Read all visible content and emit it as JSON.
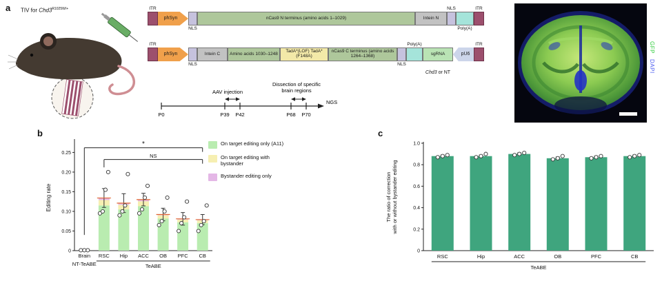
{
  "panels": {
    "a": "a",
    "b": "b",
    "c": "c"
  },
  "panel_a": {
    "tiv_label_prefix": "TIV for ",
    "tiv_gene": "Chd3",
    "tiv_allele": "R1025W/+",
    "construct1": [
      {
        "type": "itr",
        "label": "ITR",
        "pos": "top"
      },
      {
        "type": "promoter",
        "label": "phSyn",
        "pos": "in"
      },
      {
        "type": "nls",
        "label": "NLS",
        "pos": "bottom"
      },
      {
        "type": "coding",
        "label": "nCas9 N terminus (amino acids 1–1029)",
        "pos": "in"
      },
      {
        "type": "intein",
        "label": "Intein N",
        "pos": "in"
      },
      {
        "type": "nls",
        "label": "NLS",
        "pos": "top"
      },
      {
        "type": "polya",
        "label": "Poly(A)",
        "pos": "bottom"
      },
      {
        "type": "itr",
        "label": "ITR",
        "pos": "top"
      }
    ],
    "construct2": [
      {
        "type": "itr",
        "label": "ITR",
        "pos": "top"
      },
      {
        "type": "promoter",
        "label": "phSyn",
        "pos": "in"
      },
      {
        "type": "nls",
        "label": "NLS",
        "pos": "bottom"
      },
      {
        "type": "intein",
        "label": "Intein C",
        "pos": "in"
      },
      {
        "type": "coding",
        "label": "Amino acids 1030–1248",
        "pos": "in"
      },
      {
        "type": "tada",
        "label": "TadA*(LOF) TadA*(F148A)",
        "pos": "in"
      },
      {
        "type": "coding",
        "label": "nCas9 C terminus (amino acids 1264–1368)",
        "pos": "in"
      },
      {
        "type": "nls",
        "label": "NLS",
        "pos": "bottom"
      },
      {
        "type": "polya",
        "label": "Poly(A)",
        "pos": "top"
      },
      {
        "type": "sgrna",
        "label": "sgRNA",
        "pos": "in"
      },
      {
        "type": "pu6",
        "label": "pU6",
        "pos": "in"
      },
      {
        "type": "itr",
        "label": "ITR",
        "pos": "top"
      }
    ],
    "target_gene": "Chd3",
    "target_suffix": " or NT",
    "timeline": {
      "p0": "P0",
      "p39": "P39",
      "p42": "P42",
      "p68": "P68",
      "p70": "P70",
      "ngs": "NGS",
      "injection": "AAV injection",
      "dissection_line1": "Dissection of specific",
      "dissection_line2": "brain regions"
    },
    "micrograph": {
      "gfp": "GFP",
      "dapi": "DAPI"
    }
  },
  "chart_data": [
    {
      "type": "bar",
      "panel": "b",
      "ylabel": "Editing rate",
      "ylim": [
        0,
        0.27
      ],
      "yticks": [
        0,
        0.05,
        0.1,
        0.15,
        0.2,
        0.25
      ],
      "categories": [
        "Brain",
        "RSC",
        "Hip",
        "ACC",
        "OB",
        "PFC",
        "CB"
      ],
      "group_labels": {
        "left": "NT-TeABE",
        "right": "TeABE"
      },
      "series": [
        {
          "name": "On target editing only (A11)",
          "color": "#b9ecb0",
          "values": [
            0.001,
            0.115,
            0.105,
            0.113,
            0.082,
            0.072,
            0.07
          ]
        },
        {
          "name": "On target editing with bystander",
          "color": "#f6efb2",
          "values": [
            0,
            0.014,
            0.012,
            0.013,
            0.008,
            0.007,
            0.007
          ]
        },
        {
          "name": "Bystander editing only",
          "color": "#e4b7e6",
          "values": [
            0,
            0.005,
            0.004,
            0.004,
            0.002,
            0.002,
            0.002
          ]
        }
      ],
      "errors": [
        0,
        0.024,
        0.024,
        0.016,
        0.016,
        0.016,
        0.013
      ],
      "points": [
        [
          0.001,
          0.001,
          0.001
        ],
        [
          0.095,
          0.1,
          0.155,
          0.2
        ],
        [
          0.09,
          0.1,
          0.115,
          0.195
        ],
        [
          0.095,
          0.105,
          0.135,
          0.165
        ],
        [
          0.065,
          0.075,
          0.1,
          0.135
        ],
        [
          0.05,
          0.07,
          0.085,
          0.125
        ],
        [
          0.05,
          0.065,
          0.075,
          0.115
        ]
      ],
      "annotations": [
        {
          "label": "*",
          "from": 0,
          "to": 6,
          "y": 0.262,
          "from_drop": 0.04
        },
        {
          "label": "NS",
          "from": 1,
          "to": 6,
          "y": 0.232,
          "from_drop": 0.212
        }
      ],
      "mean_line_color": "#e0632e",
      "legend_position": "right"
    },
    {
      "type": "bar",
      "panel": "c",
      "ylabel_line1": "The ratio of correction",
      "ylabel_line2": "with or without bystander editing",
      "ylim": [
        0,
        1.0
      ],
      "yticks": [
        0,
        0.2,
        0.4,
        0.6,
        0.8,
        1.0
      ],
      "categories": [
        "RSC",
        "Hip",
        "ACC",
        "OB",
        "PFC",
        "CB"
      ],
      "values": [
        0.88,
        0.88,
        0.9,
        0.86,
        0.87,
        0.88
      ],
      "errors": [
        0.01,
        0.01,
        0.01,
        0.012,
        0.01,
        0.01
      ],
      "points": [
        [
          0.87,
          0.88,
          0.89
        ],
        [
          0.87,
          0.88,
          0.9
        ],
        [
          0.89,
          0.9,
          0.91
        ],
        [
          0.85,
          0.86,
          0.88
        ],
        [
          0.86,
          0.87,
          0.88
        ],
        [
          0.87,
          0.88,
          0.89
        ]
      ],
      "bar_color": "#3fa57e",
      "group_label": "TeABE"
    }
  ]
}
